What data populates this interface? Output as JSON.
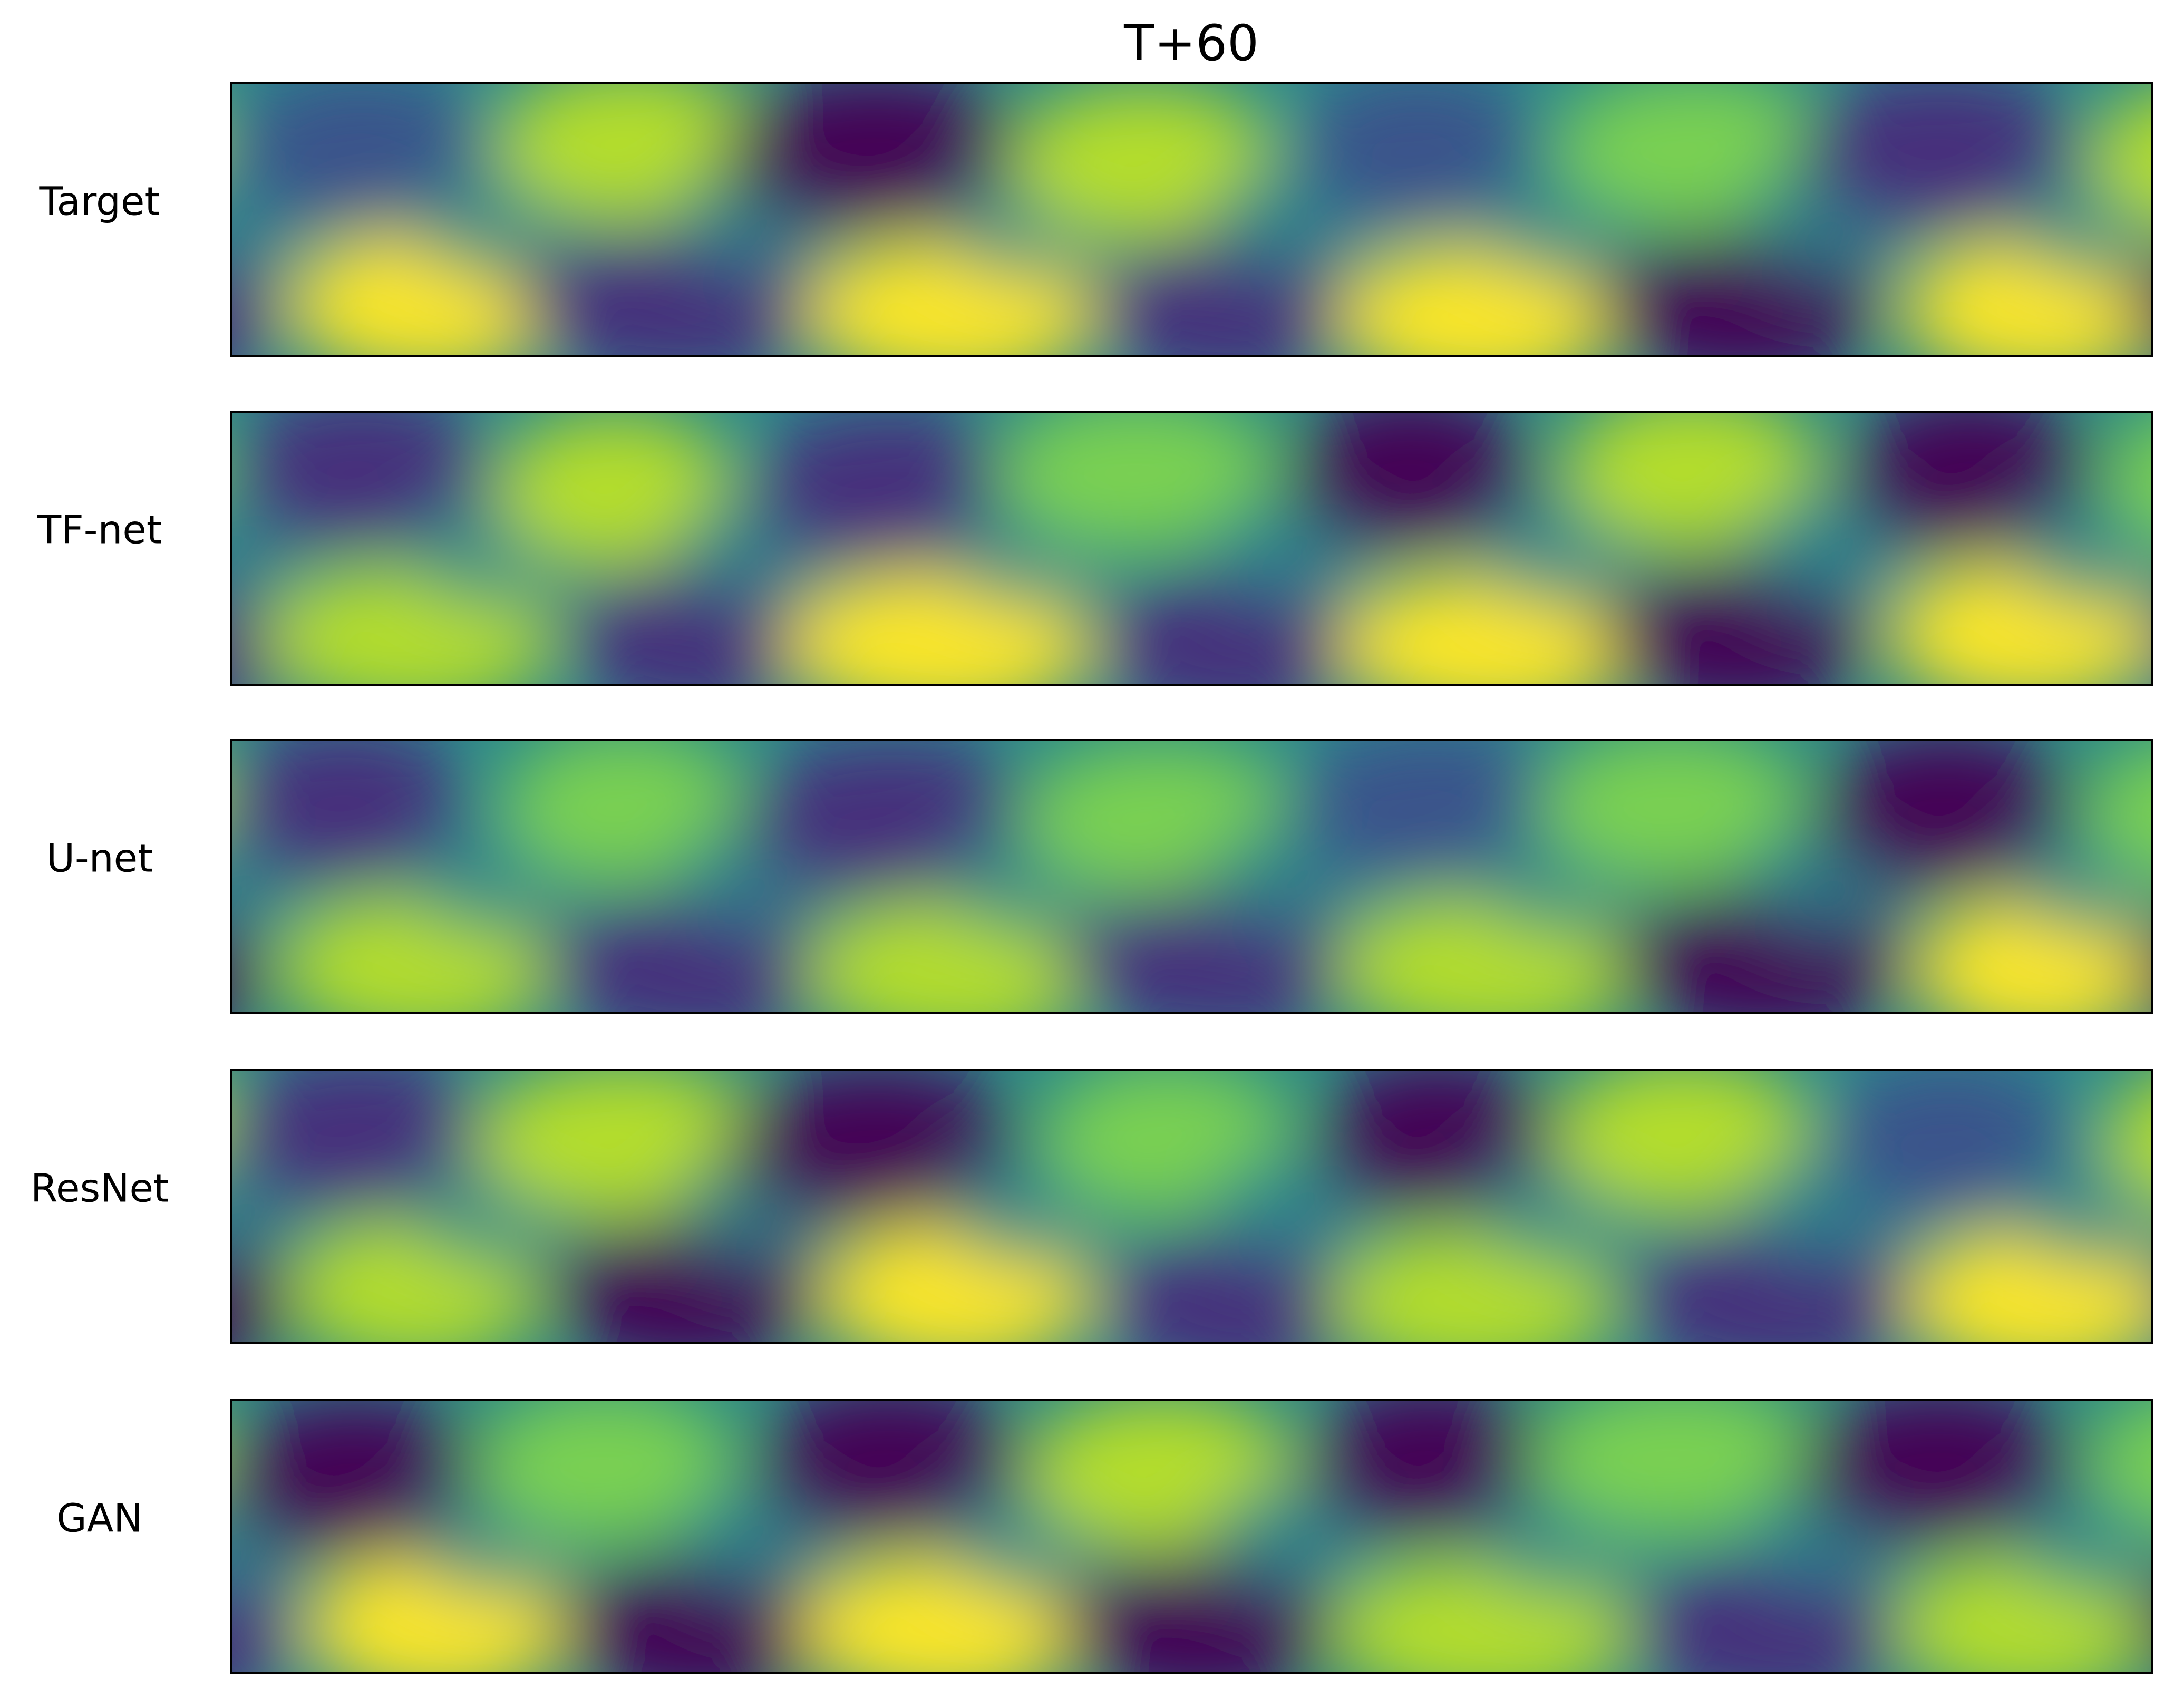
{
  "figure": {
    "title": "T+60",
    "panels": [
      {
        "label": "Target"
      },
      {
        "label": "TF-net"
      },
      {
        "label": "U-net"
      },
      {
        "label": "ResNet"
      },
      {
        "label": "GAN"
      }
    ]
  }
}
